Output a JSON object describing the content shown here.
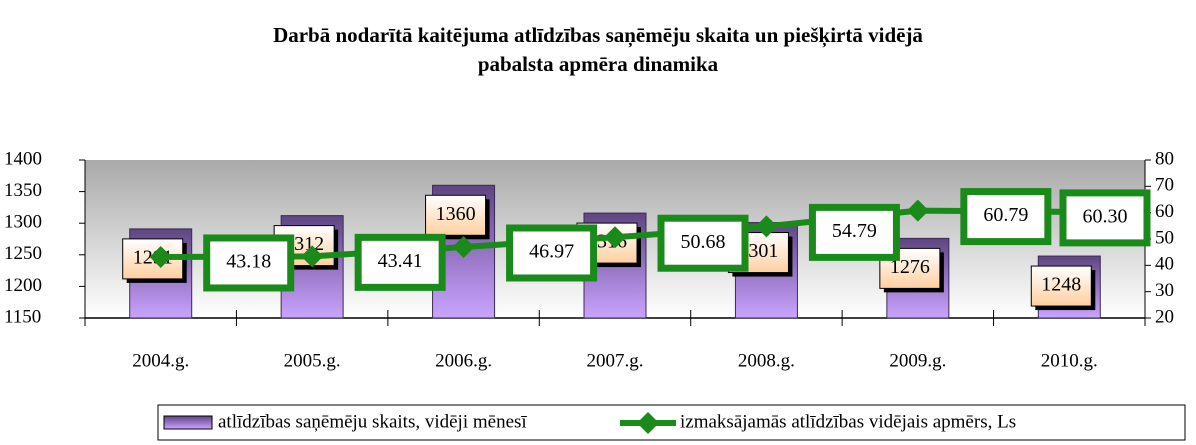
{
  "chart_data": {
    "type": "bar",
    "title": [
      "Darbā nodarītā kaitējuma atlīdzības  saņēmēju skaita un piešķirtā vidējā",
      "pabalsta apmēra dinamika"
    ],
    "categories": [
      "2004.g.",
      "2005.g.",
      "2006.g.",
      "2007.g.",
      "2008.g.",
      "2009.g.",
      "2010.g."
    ],
    "series": [
      {
        "name": "atlīdzības  saņēmēju skaits, vidēji mēnesī",
        "type": "bar",
        "color": "#7a5a9e",
        "values": [
          1291,
          1312,
          1360,
          1316,
          1301,
          1276,
          1248
        ]
      },
      {
        "name": "izmaksājamās  atlīdzības vidējais apmērs, Ls",
        "type": "line",
        "axis": "y2",
        "color": "#1a8a1a",
        "values": [
          43.18,
          43.41,
          46.97,
          50.68,
          54.79,
          60.79,
          60.3
        ],
        "value_labels": [
          "43.18",
          "43.41",
          "46.97",
          "50.68",
          "54.79",
          "60.79",
          "60.30"
        ]
      }
    ],
    "ylim": [
      1150,
      1400
    ],
    "yticks": [
      1150,
      1200,
      1250,
      1300,
      1350,
      1400
    ],
    "y2lim": [
      20,
      80
    ],
    "y2ticks": [
      20,
      30,
      40,
      50,
      60,
      70,
      80
    ]
  }
}
